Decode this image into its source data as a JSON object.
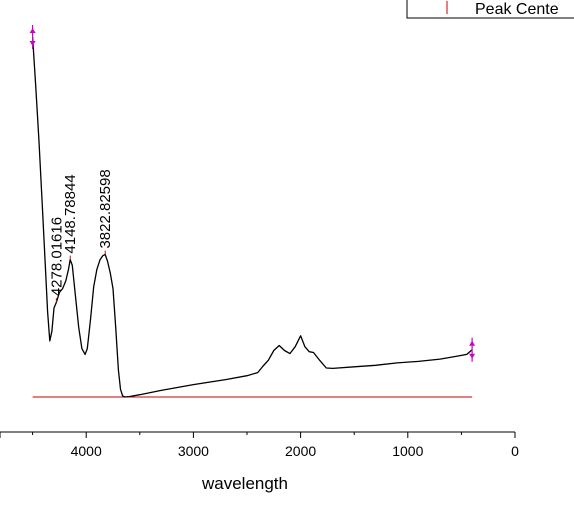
{
  "chart_data": {
    "type": "line",
    "title": "",
    "xlabel": "wavelength",
    "ylabel": "",
    "xlim": [
      4700,
      0
    ],
    "ylim": [
      -0.05,
      1.0
    ],
    "x_reversed": true,
    "grid": false,
    "x_ticks": [
      4000,
      3000,
      2000,
      1000,
      0
    ],
    "x_tick_labels": [
      "4000",
      "3000",
      "2000",
      "1000",
      "0"
    ],
    "legend": {
      "placement": "top-right",
      "entries": [
        "Peak Cente"
      ]
    },
    "series": [
      {
        "color": "#000000",
        "points": [
          [
            4500,
            0.93
          ],
          [
            4470,
            0.8
          ],
          [
            4440,
            0.66
          ],
          [
            4410,
            0.5
          ],
          [
            4380,
            0.33
          ],
          [
            4360,
            0.22
          ],
          [
            4340,
            0.145
          ],
          [
            4320,
            0.17
          ],
          [
            4300,
            0.23
          ],
          [
            4278,
            0.245
          ],
          [
            4250,
            0.27
          ],
          [
            4220,
            0.28
          ],
          [
            4190,
            0.3
          ],
          [
            4165,
            0.33
          ],
          [
            4148.8,
            0.355
          ],
          [
            4130,
            0.34
          ],
          [
            4100,
            0.26
          ],
          [
            4070,
            0.18
          ],
          [
            4040,
            0.125
          ],
          [
            4010,
            0.11
          ],
          [
            3990,
            0.125
          ],
          [
            3960,
            0.2
          ],
          [
            3930,
            0.285
          ],
          [
            3900,
            0.33
          ],
          [
            3870,
            0.355
          ],
          [
            3845,
            0.365
          ],
          [
            3822.8,
            0.368
          ],
          [
            3800,
            0.35
          ],
          [
            3775,
            0.32
          ],
          [
            3750,
            0.28
          ],
          [
            3725,
            0.18
          ],
          [
            3700,
            0.07
          ],
          [
            3680,
            0.02
          ],
          [
            3660,
            0.003
          ],
          [
            3640,
            0.0
          ],
          [
            3600,
            0.001
          ],
          [
            3500,
            0.006
          ],
          [
            3300,
            0.017
          ],
          [
            3000,
            0.032
          ],
          [
            2700,
            0.045
          ],
          [
            2500,
            0.055
          ],
          [
            2400,
            0.063
          ],
          [
            2350,
            0.08
          ],
          [
            2300,
            0.095
          ],
          [
            2250,
            0.12
          ],
          [
            2200,
            0.133
          ],
          [
            2150,
            0.12
          ],
          [
            2100,
            0.112
          ],
          [
            2050,
            0.13
          ],
          [
            2000,
            0.158
          ],
          [
            1960,
            0.13
          ],
          [
            1920,
            0.117
          ],
          [
            1880,
            0.115
          ],
          [
            1820,
            0.094
          ],
          [
            1760,
            0.075
          ],
          [
            1700,
            0.074
          ],
          [
            1500,
            0.078
          ],
          [
            1300,
            0.082
          ],
          [
            1100,
            0.088
          ],
          [
            900,
            0.092
          ],
          [
            700,
            0.098
          ],
          [
            550,
            0.105
          ],
          [
            450,
            0.11
          ],
          [
            400,
            0.122
          ]
        ]
      },
      {
        "name": "Peak Cente",
        "color": "#cc0000",
        "type": "baseline",
        "points": [
          [
            4500,
            0.0
          ],
          [
            400,
            0.0
          ]
        ]
      }
    ],
    "markers": [
      {
        "x": 4500,
        "y": 0.93,
        "color": "#cc00cc"
      },
      {
        "x": 400,
        "y": 0.122,
        "color": "#cc00cc"
      }
    ],
    "peaks": [
      {
        "x": 4278.01616,
        "y": 0.245,
        "label": "4278.01616"
      },
      {
        "x": 4148.78844,
        "y": 0.355,
        "label": "4148.78844"
      },
      {
        "x": 3822.82598,
        "y": 0.368,
        "label": "3822.82598"
      }
    ]
  }
}
